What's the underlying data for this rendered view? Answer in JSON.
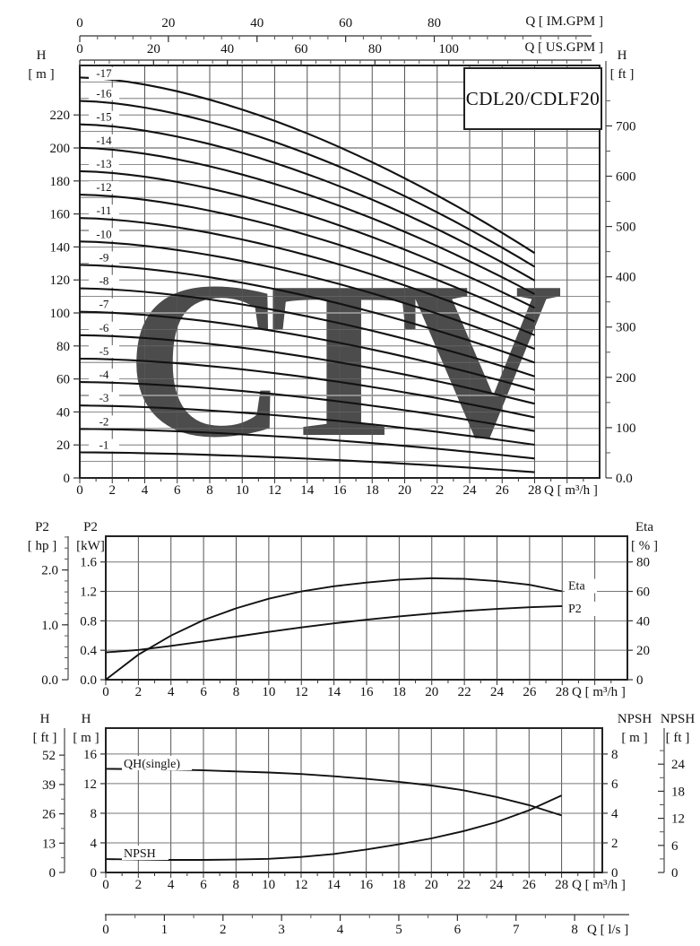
{
  "title": "CDL20/CDLF20",
  "watermark": "CTV",
  "colors": {
    "curve": "#121212",
    "grid_minor": "#666666",
    "grid_major": "#999999",
    "axis": "#333333",
    "watermark": "#bdd7ec"
  },
  "labels": {
    "main": {
      "top_axis1": "Q [ IM.GPM ]",
      "top_axis2": "Q [ US.GPM ]",
      "left_1": "H",
      "left_2": "[ m ]",
      "right_1": "H",
      "right_2": "[ ft ]",
      "bottom": "Q [ m³/h ]"
    },
    "power": {
      "hp_1": "P2",
      "hp_2": "[ hp ]",
      "kw_1": "P2",
      "kw_2": "[kW]",
      "eta_1": "Eta",
      "eta_2": "[ % ]",
      "bottom": "Q [ m³/h ]"
    },
    "npsh": {
      "ft_1": "H",
      "ft_2": "[ ft ]",
      "m_1": "H",
      "m_2": "[ m ]",
      "npshm_1": "NPSH",
      "npshm_2": "[ m ]",
      "npshft_1": "NPSH",
      "npshft_2": "[ ft ]",
      "bottom": "Q [ m³/h ]",
      "ls": "Q [ l/s ]"
    }
  },
  "chart_data": [
    {
      "type": "line",
      "name": "head-capacity",
      "title": "CDL20/CDLF20",
      "x_label": "Q [ m³/h ]",
      "x_ticks": [
        0,
        2,
        4,
        6,
        8,
        10,
        12,
        14,
        16,
        18,
        20,
        22,
        24,
        26,
        28
      ],
      "x_range": [
        0,
        32
      ],
      "im_gpm": {
        "label": "Q [ IM.GPM ]",
        "ticks": [
          0,
          20,
          40,
          60,
          80
        ],
        "per_m3h": 3.666
      },
      "us_gpm": {
        "label": "Q [ US.GPM ]",
        "ticks": [
          0,
          20,
          40,
          60,
          80,
          100
        ],
        "per_m3h": 4.403
      },
      "y_left_label": "H [ m ]",
      "y_left_ticks": [
        0,
        20,
        40,
        60,
        80,
        100,
        120,
        140,
        160,
        180,
        200,
        220
      ],
      "y_range": [
        0,
        250
      ],
      "y_right_label": "H [ ft ]",
      "y_right_ticks": [
        {
          "v": 0,
          "t": "0.0"
        },
        {
          "v": 100,
          "t": "100"
        },
        {
          "v": 200,
          "t": "200"
        },
        {
          "v": 300,
          "t": "300"
        },
        {
          "v": 400,
          "t": "400"
        },
        {
          "v": 500,
          "t": "500"
        },
        {
          "v": 600,
          "t": "600"
        },
        {
          "v": 700,
          "t": "700"
        }
      ],
      "shape": 1.65,
      "series": [
        {
          "name": "-1",
          "h0": 15.5,
          "h28": 3.5
        },
        {
          "name": "-2",
          "h0": 29.7,
          "h28": 11.8
        },
        {
          "name": "-3",
          "h0": 43.9,
          "h28": 20.1
        },
        {
          "name": "-4",
          "h0": 58.1,
          "h28": 28.4
        },
        {
          "name": "-5",
          "h0": 72.3,
          "h28": 36.7
        },
        {
          "name": "-6",
          "h0": 86.5,
          "h28": 45.0
        },
        {
          "name": "-7",
          "h0": 100.7,
          "h28": 53.3
        },
        {
          "name": "-8",
          "h0": 114.9,
          "h28": 61.6
        },
        {
          "name": "-9",
          "h0": 129.1,
          "h28": 69.9
        },
        {
          "name": "-10",
          "h0": 143.3,
          "h28": 78.2
        },
        {
          "name": "-11",
          "h0": 157.5,
          "h28": 86.5
        },
        {
          "name": "-12",
          "h0": 171.7,
          "h28": 94.8
        },
        {
          "name": "-13",
          "h0": 185.9,
          "h28": 103.1
        },
        {
          "name": "-14",
          "h0": 200.1,
          "h28": 111.4
        },
        {
          "name": "-15",
          "h0": 214.3,
          "h28": 119.7
        },
        {
          "name": "-16",
          "h0": 228.5,
          "h28": 128.0
        },
        {
          "name": "-17",
          "h0": 242.7,
          "h28": 136.3
        }
      ]
    },
    {
      "type": "line",
      "name": "power-efficiency",
      "x_ticks": [
        0,
        2,
        4,
        6,
        8,
        10,
        12,
        14,
        16,
        18,
        20,
        22,
        24,
        26,
        28
      ],
      "x_range": [
        0,
        32
      ],
      "y_left_label": "P2 [kW]",
      "y_left2_label": "P2 [ hp ]",
      "y_right_label": "Eta [ % ]",
      "kw_ticks": [
        {
          "v": 0,
          "t": "0.0"
        },
        {
          "v": 0.4,
          "t": "0.4"
        },
        {
          "v": 0.8,
          "t": "0.8"
        },
        {
          "v": 1.2,
          "t": "1.2"
        },
        {
          "v": 1.6,
          "t": "1.6"
        }
      ],
      "hp_ticks": [
        {
          "v": 0,
          "t": "0.0"
        },
        {
          "v": 1,
          "t": "1.0"
        },
        {
          "v": 2,
          "t": "2.0"
        }
      ],
      "eta_ticks": [
        0,
        20,
        40,
        60,
        80
      ],
      "series": [
        {
          "name": "P2",
          "unit": "kW",
          "label_dy": 7,
          "points": [
            [
              0,
              0.37
            ],
            [
              2,
              0.405
            ],
            [
              4,
              0.46
            ],
            [
              6,
              0.52
            ],
            [
              8,
              0.585
            ],
            [
              10,
              0.65
            ],
            [
              12,
              0.71
            ],
            [
              14,
              0.765
            ],
            [
              16,
              0.815
            ],
            [
              18,
              0.86
            ],
            [
              20,
              0.9
            ],
            [
              22,
              0.935
            ],
            [
              24,
              0.962
            ],
            [
              26,
              0.985
            ],
            [
              28,
              1.0
            ]
          ]
        },
        {
          "name": "Eta",
          "unit": "%",
          "label_dy": -2,
          "points": [
            [
              0,
              0
            ],
            [
              2,
              17
            ],
            [
              4,
              30
            ],
            [
              6,
              40.5
            ],
            [
              8,
              48.5
            ],
            [
              10,
              55
            ],
            [
              12,
              60
            ],
            [
              14,
              63.5
            ],
            [
              16,
              66
            ],
            [
              18,
              68
            ],
            [
              20,
              69
            ],
            [
              22,
              68.5
            ],
            [
              24,
              67
            ],
            [
              26,
              64.5
            ],
            [
              28,
              60
            ]
          ]
        }
      ]
    },
    {
      "type": "line",
      "name": "single-stage-head-npsh",
      "x_ticks": [
        0,
        2,
        4,
        6,
        8,
        10,
        12,
        14,
        16,
        18,
        20,
        22,
        24,
        26,
        28
      ],
      "x_range": [
        0,
        30.5
      ],
      "y_left_label": "H [ m ]",
      "y_left2_label": "H [ ft ]",
      "y_right_label": "NPSH [ m ]",
      "y_right2_label": "NPSH [ ft ]",
      "m_ticks": [
        0,
        4,
        8,
        12,
        16
      ],
      "ft_ticks": [
        0,
        13,
        26,
        39,
        52
      ],
      "npsh_m_ticks": [
        0,
        2,
        4,
        6,
        8
      ],
      "npsh_ft_ticks": [
        0,
        6,
        12,
        18,
        24
      ],
      "ls_label": "Q [ l/s ]",
      "ls_ticks": [
        0,
        1,
        2,
        3,
        4,
        5,
        6,
        7,
        8
      ],
      "series": [
        {
          "name": "QH(single)",
          "unit": "m",
          "points": [
            [
              0,
              14
            ],
            [
              2,
              13.95
            ],
            [
              4,
              13.9
            ],
            [
              6,
              13.8
            ],
            [
              8,
              13.65
            ],
            [
              10,
              13.5
            ],
            [
              12,
              13.3
            ],
            [
              14,
              13.0
            ],
            [
              16,
              12.65
            ],
            [
              18,
              12.25
            ],
            [
              20,
              11.75
            ],
            [
              22,
              11.1
            ],
            [
              24,
              10.2
            ],
            [
              26,
              9.1
            ],
            [
              28,
              7.7
            ]
          ]
        },
        {
          "name": "NPSH",
          "unit": "npsh_m",
          "points": [
            [
              0,
              0.9
            ],
            [
              2,
              0.87
            ],
            [
              4,
              0.85
            ],
            [
              6,
              0.85
            ],
            [
              8,
              0.87
            ],
            [
              10,
              0.92
            ],
            [
              12,
              1.05
            ],
            [
              14,
              1.25
            ],
            [
              16,
              1.55
            ],
            [
              18,
              1.9
            ],
            [
              20,
              2.3
            ],
            [
              22,
              2.8
            ],
            [
              24,
              3.4
            ],
            [
              26,
              4.2
            ],
            [
              28,
              5.2
            ]
          ]
        }
      ]
    }
  ]
}
